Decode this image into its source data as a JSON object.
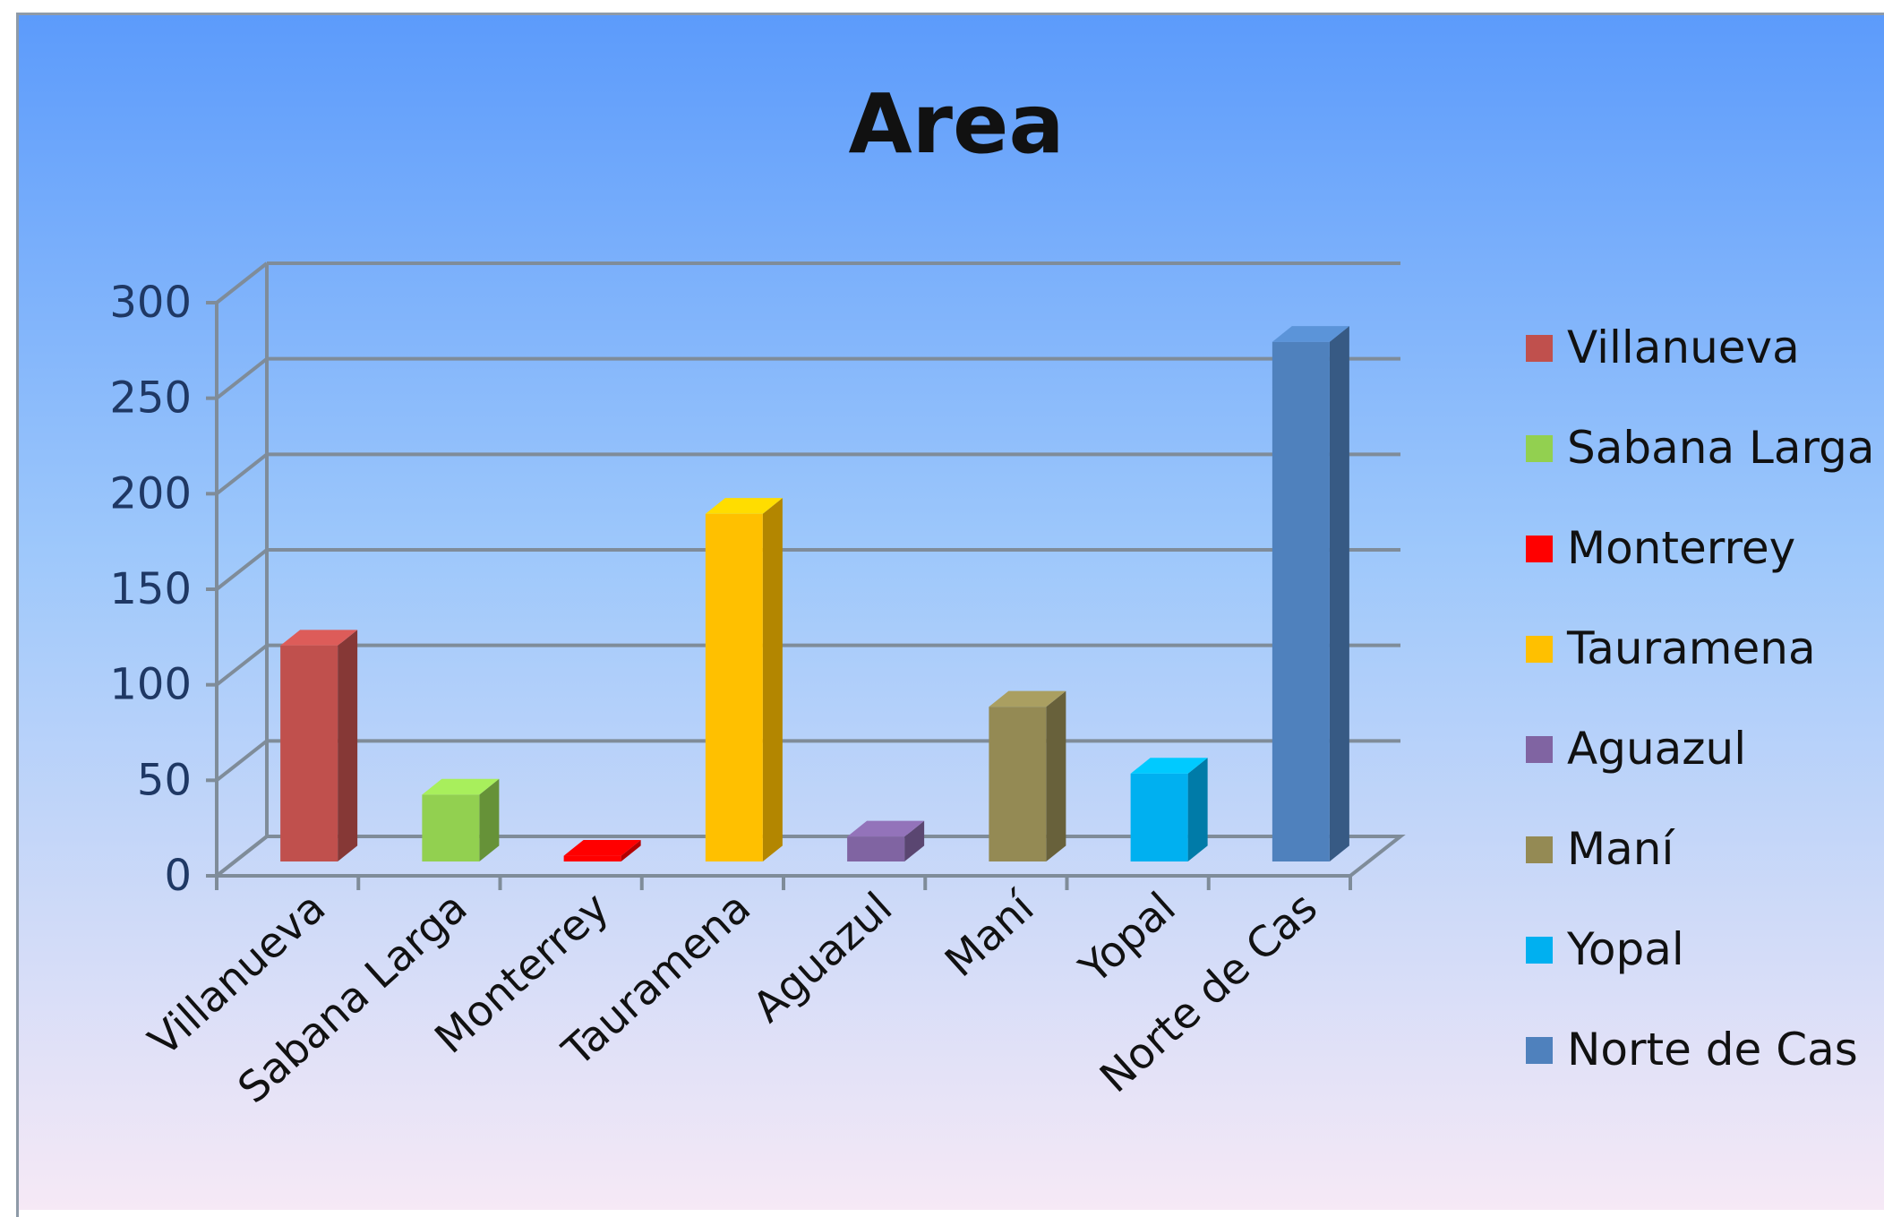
{
  "chart_data": {
    "type": "bar",
    "title": "Area",
    "categories": [
      "Villanueva",
      "Sabana Larga",
      "Monterrey",
      "Tauramena",
      "Aguazul",
      "Maní",
      "Yopal",
      "Norte de Cas"
    ],
    "values": [
      113,
      35,
      3,
      182,
      13,
      81,
      46,
      272
    ],
    "colors": [
      "#c0504d",
      "#92d050",
      "#ff0000",
      "#ffc000",
      "#8064a2",
      "#948a54",
      "#00b0f0",
      "#4f81bd"
    ],
    "ylim": [
      0,
      300
    ],
    "yticks": [
      "0",
      "50",
      "100",
      "150",
      "200",
      "250",
      "300"
    ],
    "legend": {
      "position": "right",
      "items": [
        "Villanueva",
        "Sabana Larga",
        "Monterrey",
        "Tauramena",
        "Aguazul",
        "Maní",
        "Yopal",
        "Norte de Cas"
      ]
    },
    "grid": true,
    "style": "3d-column"
  }
}
